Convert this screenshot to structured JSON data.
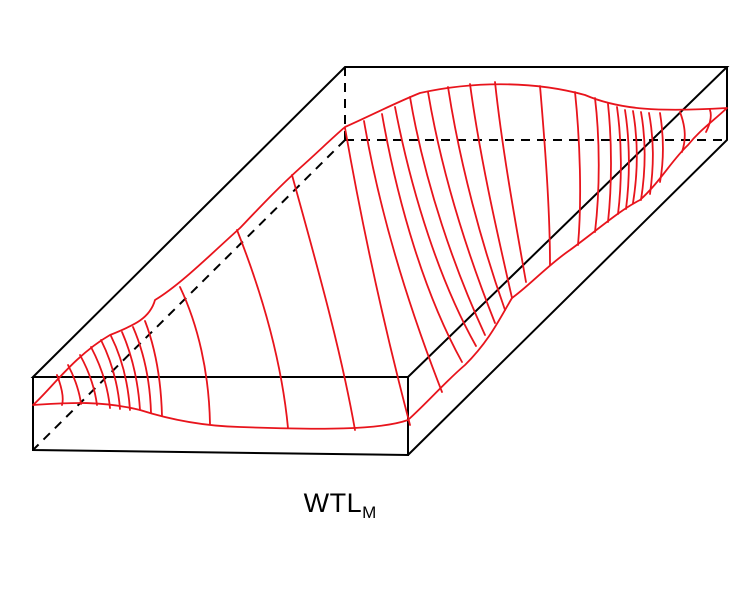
{
  "figure": {
    "caption_main": "WTL",
    "caption_subscript": "M",
    "colors": {
      "box": "#000000",
      "surface": "#e8141c",
      "background": "#ffffff"
    }
  }
}
